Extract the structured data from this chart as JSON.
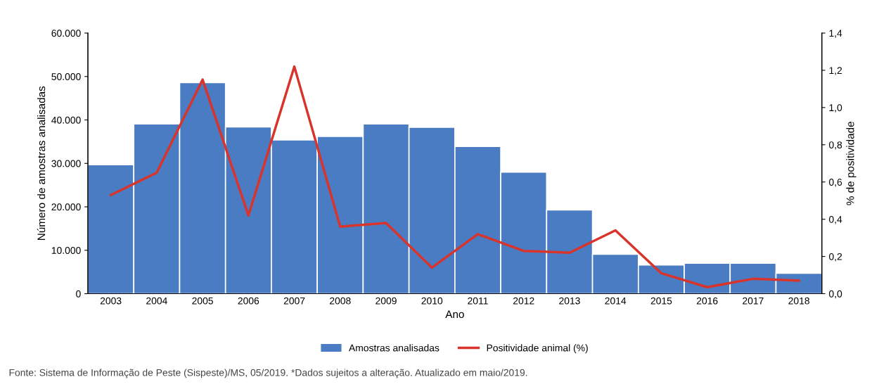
{
  "chart_data": {
    "type": "bar",
    "xlabel": "Ano",
    "ylabel": "Número de amostras analisadas",
    "y2label": "% de positividade",
    "categories": [
      "2003",
      "2004",
      "2005",
      "2006",
      "2007",
      "2008",
      "2009",
      "2010",
      "2011",
      "2012",
      "2013",
      "2014",
      "2015",
      "2016",
      "2017",
      "2018"
    ],
    "series": [
      {
        "name": "Amostras analisadas",
        "color": "#4a7cc4",
        "values": [
          29700,
          39100,
          48600,
          38400,
          35400,
          36200,
          39100,
          38300,
          33900,
          28000,
          19300,
          9100,
          6600,
          7000,
          7000,
          4700
        ]
      },
      {
        "name": "Positividade animal (%)",
        "type": "line",
        "axis": "y2",
        "color": "#d9342b",
        "values": [
          0.53,
          0.65,
          1.15,
          0.42,
          1.22,
          0.36,
          0.38,
          0.14,
          0.32,
          0.23,
          0.22,
          0.34,
          0.11,
          0.035,
          0.08,
          0.07
        ]
      }
    ],
    "ylim": [
      0,
      60000
    ],
    "yticks": [
      {
        "value": 0,
        "label": "0"
      },
      {
        "value": 10000,
        "label": "10.000"
      },
      {
        "value": 20000,
        "label": "20.000"
      },
      {
        "value": 30000,
        "label": "30.000"
      },
      {
        "value": 40000,
        "label": "40.000"
      },
      {
        "value": 50000,
        "label": "50.000"
      },
      {
        "value": 60000,
        "label": "60.000"
      }
    ],
    "y2lim": [
      0,
      1.4
    ],
    "y2ticks": [
      {
        "value": 0,
        "label": "0,0"
      },
      {
        "value": 0.2,
        "label": "0,2"
      },
      {
        "value": 0.4,
        "label": "0,4"
      },
      {
        "value": 0.6,
        "label": "0,6"
      },
      {
        "value": 0.8,
        "label": "0,8"
      },
      {
        "value": 1.0,
        "label": "1,0"
      },
      {
        "value": 1.2,
        "label": "1,2"
      },
      {
        "value": 1.4,
        "label": "1,4"
      }
    ],
    "grid": false,
    "legend": "bottom",
    "annotations": [
      "Fonte: Sistema de Informação de Peste (Sispeste)/MS, 05/2019. *Dados sujeitos a alteração. Atualizado em maio/2019."
    ]
  }
}
